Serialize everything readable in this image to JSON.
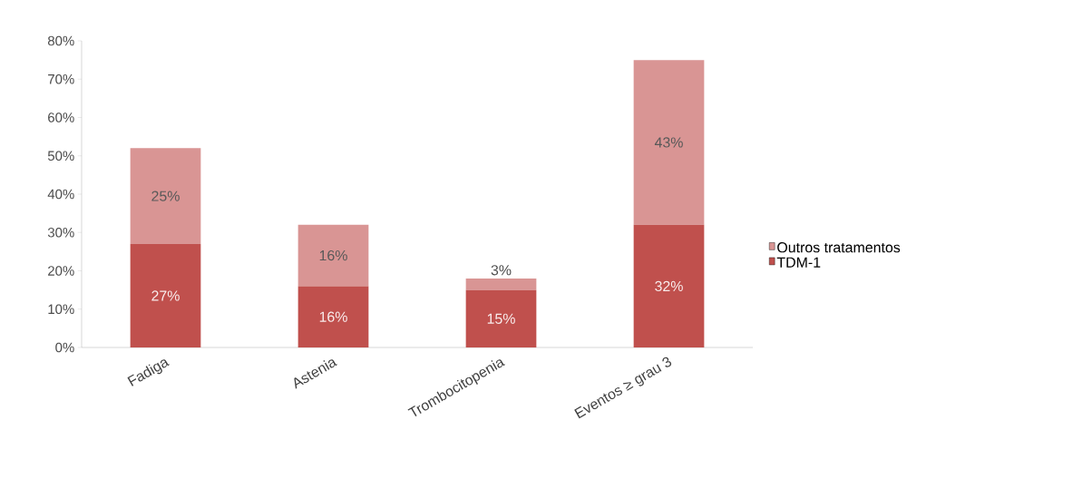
{
  "chart_data": {
    "type": "bar",
    "stacked": true,
    "categories": [
      "Fadiga",
      "Astenia",
      "Trombocitopenia",
      "Eventos ≥ grau 3"
    ],
    "series": [
      {
        "name": "TDM-1",
        "color": "#c0504d",
        "values": [
          27,
          16,
          15,
          32
        ],
        "value_labels": [
          "27%",
          "16%",
          "15%",
          "32%"
        ]
      },
      {
        "name": "Outros tratamentos",
        "color": "#d99594",
        "values": [
          25,
          16,
          3,
          43
        ],
        "value_labels": [
          "25%",
          "16%",
          "3%",
          "43%"
        ]
      }
    ],
    "ylim": [
      0,
      80
    ],
    "yticks": [
      {
        "value": 0,
        "label": "0%"
      },
      {
        "value": 10,
        "label": "10%"
      },
      {
        "value": 20,
        "label": "20%"
      },
      {
        "value": 30,
        "label": "30%"
      },
      {
        "value": 40,
        "label": "40%"
      },
      {
        "value": 50,
        "label": "50%"
      },
      {
        "value": 60,
        "label": "60%"
      },
      {
        "value": 70,
        "label": "70%"
      },
      {
        "value": 80,
        "label": "80%"
      }
    ],
    "legend": "right"
  }
}
